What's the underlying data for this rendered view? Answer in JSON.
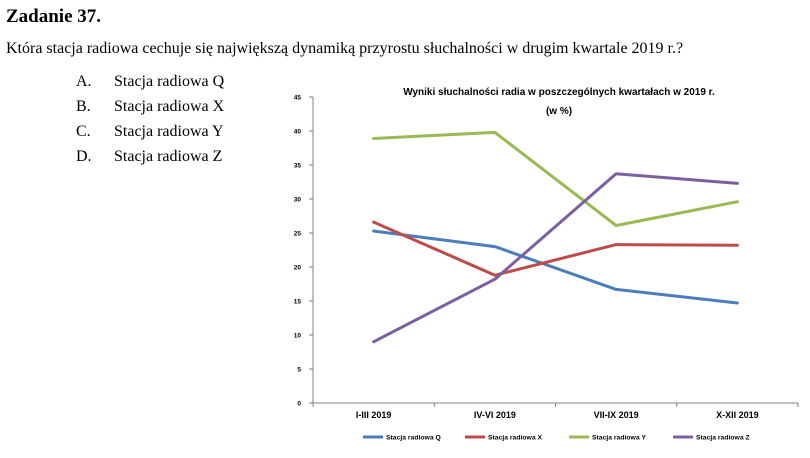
{
  "task": {
    "title": "Zadanie 37.",
    "question": "Która stacja radiowa cechuje się największą dynamiką przyrostu słuchalności w drugim kwartale 2019 r.?",
    "answers": [
      {
        "letter": "A.",
        "text": "Stacja radiowa Q"
      },
      {
        "letter": "B.",
        "text": "Stacja radiowa X"
      },
      {
        "letter": "C.",
        "text": "Stacja radiowa Y"
      },
      {
        "letter": "D.",
        "text": "Stacja radiowa Z"
      }
    ]
  },
  "chart_data": {
    "type": "line",
    "title": "Wyniki słuchalności radia w poszczególnych kwartałach w 2019 r.",
    "subtitle": "(w %)",
    "categories": [
      "I-III 2019",
      "IV-VI 2019",
      "VII-IX 2019",
      "X-XII 2019"
    ],
    "ylim": [
      0,
      45
    ],
    "yticks": [
      0,
      5,
      10,
      15,
      20,
      25,
      30,
      35,
      40,
      45
    ],
    "grid": false,
    "legend": "bottom",
    "series": [
      {
        "name": "Stacja radiowa Q",
        "color": "#4a7ebb",
        "values": [
          25.3,
          23.0,
          16.7,
          14.7
        ]
      },
      {
        "name": "Stacja radiowa X",
        "color": "#be4b48",
        "values": [
          26.6,
          18.8,
          23.3,
          23.2
        ]
      },
      {
        "name": "Stacja radiowa Y",
        "color": "#98b954",
        "values": [
          38.9,
          39.8,
          26.1,
          29.6
        ]
      },
      {
        "name": "Stacja radiowa Z",
        "color": "#7d5fa0",
        "values": [
          9.0,
          18.2,
          33.7,
          32.3
        ]
      }
    ]
  }
}
